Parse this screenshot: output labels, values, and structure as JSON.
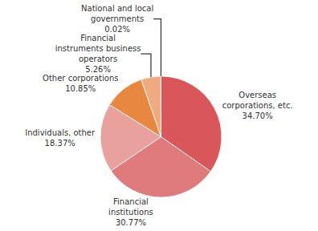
{
  "chart_data": {
    "type": "pie",
    "categories": [
      "Overseas corporations, etc.",
      "Financial institutions",
      "Individuals, other",
      "Other corporations",
      "Financial instruments business operators",
      "National and local governments"
    ],
    "values": [
      34.7,
      30.77,
      18.37,
      10.85,
      5.26,
      0.02
    ],
    "value_labels": [
      "34.70%",
      "30.77%",
      "18.37%",
      "10.85%",
      "5.26%",
      "0.02%"
    ],
    "colors": [
      "#d9575b",
      "#e07b7d",
      "#e9a19d",
      "#e8873f",
      "#eeab80",
      "#e9b3a8"
    ],
    "data_labels": true
  }
}
